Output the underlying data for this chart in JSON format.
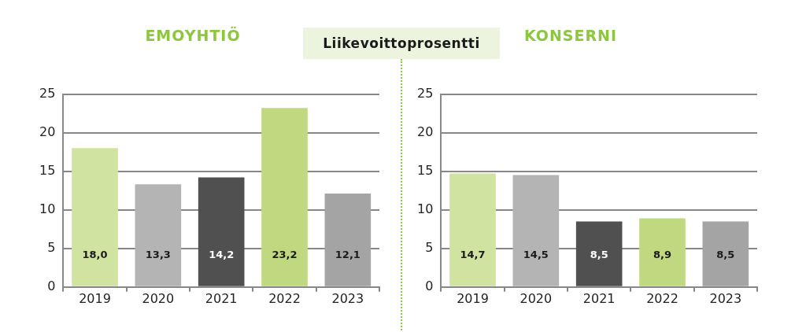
{
  "chart_data": [
    {
      "type": "bar",
      "title": "EMOYHTIÖ",
      "categories": [
        "2019",
        "2020",
        "2021",
        "2022",
        "2023"
      ],
      "values": [
        18.0,
        13.3,
        14.2,
        23.2,
        12.1
      ],
      "colors": [
        "#d0e3a0",
        "#b4b4b4",
        "#505050",
        "#c0d880",
        "#a4a4a4"
      ],
      "value_labels": [
        "18,0",
        "13,3",
        "14,2",
        "23,2",
        "12,1"
      ],
      "ylim": [
        0,
        25
      ],
      "yticks": [
        0,
        5,
        10,
        15,
        20,
        25
      ],
      "grid": "y",
      "legend": false
    },
    {
      "type": "other",
      "title": "Liikevoittoprosentti"
    },
    {
      "type": "bar",
      "title": "KONSERNI",
      "categories": [
        "2019",
        "2020",
        "2021",
        "2022",
        "2023"
      ],
      "values": [
        14.7,
        14.5,
        8.5,
        8.9,
        8.5
      ],
      "colors": [
        "#d0e3a0",
        "#b4b4b4",
        "#505050",
        "#c0d880",
        "#a4a4a4"
      ],
      "value_labels": [
        "14,7",
        "14,5",
        "8,5",
        "8,9",
        "8,5"
      ],
      "ylim": [
        0,
        25
      ],
      "yticks": [
        0,
        5,
        10,
        15,
        20,
        25
      ],
      "grid": "y",
      "legend": false
    }
  ]
}
